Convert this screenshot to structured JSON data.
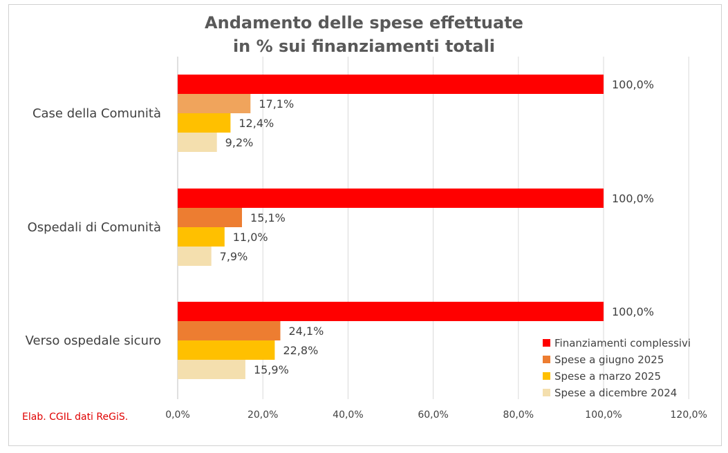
{
  "chart_data": {
    "type": "bar",
    "orientation": "horizontal",
    "title": [
      "Andamento delle spese effettuate",
      "in % sui finanziamenti totali"
    ],
    "categories": [
      "Case della Comunità",
      "Ospedali di Comunità",
      "Verso ospedale sicuro"
    ],
    "series": [
      {
        "name": "Finanziamenti complessivi",
        "color": "#ff0000",
        "values": [
          100.0,
          100.0,
          100.0
        ],
        "labels": [
          "100,0%",
          "100,0%",
          "100,0%"
        ]
      },
      {
        "name": "Spese a giugno 2025",
        "color": "#ed7d31",
        "values": [
          17.1,
          15.1,
          24.1
        ],
        "labels": [
          "17,1%",
          "15,1%",
          "24,1%"
        ]
      },
      {
        "name": "Spese a marzo 2025",
        "color": "#ffc000",
        "values": [
          12.4,
          11.0,
          22.8
        ],
        "labels": [
          "12,4%",
          "11,0%",
          "22,8%"
        ]
      },
      {
        "name": "Spese a dicembre 2024",
        "color": "#f4dfae",
        "values": [
          9.2,
          7.9,
          15.9
        ],
        "labels": [
          "9,2%",
          "7,9%",
          "15,9%"
        ]
      }
    ],
    "series_color_overrides": {
      "Case della Comunità": {
        "Spese a giugno 2025": "#f0a45c"
      }
    },
    "xlim": [
      0,
      120
    ],
    "xticks": [
      0,
      20,
      40,
      60,
      80,
      100,
      120
    ],
    "xtick_labels": [
      "0,0%",
      "20,0%",
      "40,0%",
      "60,0%",
      "80,0%",
      "100,0%",
      "120,0%"
    ],
    "grid": "vertical",
    "legend_position": "bottom-right",
    "xlabel": "",
    "ylabel": ""
  },
  "source_note": "Elab. CGIL dati ReGiS."
}
